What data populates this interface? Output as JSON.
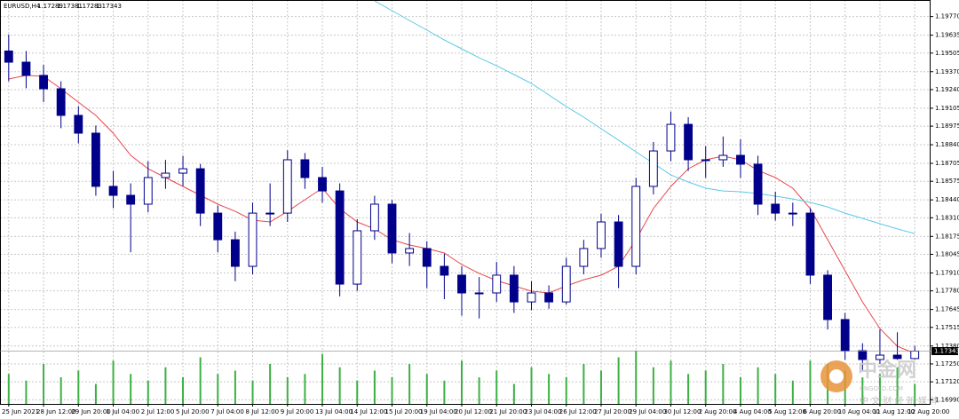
{
  "chart_data": {
    "type": "candlestick",
    "title": "EURUSD,H4",
    "categories": [
      "25 Jun 2021",
      null,
      "28 Jun 12:00",
      null,
      "29 Jun 20:00",
      null,
      "1 Jul 04:00",
      null,
      "2 Jul 12:00",
      null,
      "5 Jul 20:00",
      null,
      "7 Jul 04:00",
      null,
      "8 Jul 12:00",
      null,
      "9 Jul 20:00",
      null,
      "13 Jul 04:00",
      null,
      "14 Jul 12:00",
      null,
      "15 Jul 20:00",
      null,
      "19 Jul 04:00",
      null,
      "20 Jul 12:00",
      null,
      "21 Jul 20:00",
      null,
      "23 Jul 04:00",
      null,
      "26 Jul 12:00",
      null,
      "27 Jul 20:00",
      null,
      "29 Jul 04:00",
      null,
      "30 Jul 12:00",
      null,
      "2 Aug 20:00",
      null,
      "4 Aug 04:00",
      null,
      "5 Aug 12:00",
      null,
      "6 Aug 20:00",
      null,
      "10 Aug 04:00",
      null,
      "11 Aug 12:00",
      null,
      "12 Aug 20:00"
    ],
    "open": [
      1.1952,
      1.19439,
      1.19343,
      1.19246,
      1.19053,
      1.18924,
      1.18538,
      1.18473,
      1.18409,
      1.18602,
      1.18634,
      1.18666,
      1.18344,
      1.18151,
      1.17958,
      1.18344,
      1.18344,
      1.18731,
      1.18602,
      1.18505,
      1.17829,
      1.18216,
      1.18409,
      1.18055,
      1.18087,
      1.17958,
      1.17894,
      1.17765,
      1.17765,
      1.17894,
      1.177,
      1.17765,
      1.177,
      1.17958,
      1.18087,
      1.1828,
      1.17958,
      1.18538,
      1.18795,
      1.18988,
      1.18731,
      1.18731,
      1.18763,
      1.18699,
      1.18409,
      1.18344,
      1.18344,
      1.17894,
      1.17572,
      1.17346,
      1.17282,
      1.17314,
      1.17289
    ],
    "high": [
      1.1964,
      1.1952,
      1.1942,
      1.193,
      1.1912,
      1.1898,
      1.1865,
      1.1856,
      1.1872,
      1.1873,
      1.1876,
      1.187,
      1.184,
      1.1821,
      1.1842,
      1.1856,
      1.188,
      1.1878,
      1.1868,
      1.1856,
      1.183,
      1.1847,
      1.1844,
      1.182,
      1.1814,
      1.1805,
      1.1796,
      1.1788,
      1.1799,
      1.1796,
      1.1785,
      1.1782,
      1.1802,
      1.1815,
      1.1834,
      1.1833,
      1.186,
      1.1886,
      1.1908,
      1.1904,
      1.1883,
      1.189,
      1.1888,
      1.1876,
      1.185,
      1.1842,
      1.1838,
      1.1793,
      1.1762,
      1.174,
      1.175,
      1.1748,
      1.17381
    ],
    "low": [
      1.193,
      1.1925,
      1.1915,
      1.1896,
      1.1885,
      1.1847,
      1.1838,
      1.1806,
      1.1835,
      1.1852,
      1.1854,
      1.1825,
      1.1806,
      1.1785,
      1.179,
      1.1825,
      1.1828,
      1.1852,
      1.1842,
      1.1774,
      1.1778,
      1.1815,
      1.1798,
      1.1796,
      1.178,
      1.1772,
      1.176,
      1.1758,
      1.177,
      1.1762,
      1.1764,
      1.1765,
      1.1768,
      1.179,
      1.1802,
      1.178,
      1.179,
      1.1848,
      1.1872,
      1.1865,
      1.186,
      1.1868,
      1.186,
      1.1833,
      1.1829,
      1.1825,
      1.1783,
      1.175,
      1.1728,
      1.172,
      1.1725,
      1.1728,
      1.17283
    ],
    "close": [
      1.19439,
      1.19343,
      1.19246,
      1.19053,
      1.18924,
      1.18538,
      1.18473,
      1.18409,
      1.18602,
      1.18634,
      1.18666,
      1.18344,
      1.18151,
      1.17958,
      1.18344,
      1.18344,
      1.18731,
      1.18602,
      1.18505,
      1.17829,
      1.18216,
      1.18409,
      1.18055,
      1.18087,
      1.17958,
      1.17894,
      1.17765,
      1.17765,
      1.17894,
      1.177,
      1.17765,
      1.177,
      1.17958,
      1.18087,
      1.1828,
      1.17958,
      1.18538,
      1.18795,
      1.18988,
      1.18731,
      1.18731,
      1.18763,
      1.18699,
      1.18409,
      1.18344,
      1.18344,
      1.17894,
      1.17572,
      1.17346,
      1.17282,
      1.17314,
      1.17289,
      1.17343
    ],
    "volumes": [
      9000,
      7000,
      12000,
      8000,
      10000,
      6000,
      13000,
      9000,
      7000,
      11000,
      8000,
      14000,
      9000,
      10000,
      7000,
      12000,
      8000,
      9000,
      15000,
      11000,
      7000,
      10000,
      8000,
      12000,
      9000,
      7000,
      13000,
      8000,
      10000,
      6000,
      11000,
      9000,
      8000,
      12000,
      10000,
      14000,
      16000,
      11000,
      13000,
      9000,
      10000,
      12000,
      8000,
      11000,
      9000,
      7000,
      13000,
      12000,
      10000,
      8000,
      9000,
      11000,
      6000
    ],
    "volume_color": "#3cb043",
    "bull_fill": "#ffffff",
    "bear_fill": "#00008b",
    "candle_color": "#00008b",
    "lines": [
      {
        "color": "#e8474a",
        "values": [
          1.19317,
          1.19343,
          1.19336,
          1.19246,
          1.19149,
          1.19053,
          1.18924,
          1.18763,
          1.18666,
          1.18602,
          1.18538,
          1.18473,
          1.18409,
          1.18357,
          1.18293,
          1.1828,
          1.18357,
          1.18441,
          1.18525,
          1.18377,
          1.1828,
          1.18229,
          1.18151,
          1.18113,
          1.18087,
          1.18055,
          1.17971,
          1.17907,
          1.17855,
          1.17816,
          1.17778,
          1.17765,
          1.17816,
          1.17861,
          1.17894,
          1.17958,
          1.18151,
          1.18377,
          1.18538,
          1.18666,
          1.18731,
          1.18757,
          1.18731,
          1.18653,
          1.18602,
          1.18525,
          1.18377,
          1.18151,
          1.17926,
          1.177,
          1.17507,
          1.17378,
          1.17327
        ]
      },
      {
        "color": "#5bc8e8",
        "values": [
          null,
          null,
          null,
          null,
          null,
          null,
          null,
          null,
          null,
          null,
          null,
          null,
          null,
          null,
          null,
          null,
          null,
          null,
          null,
          null,
          null,
          1.19884,
          1.19813,
          1.19742,
          1.19671,
          1.196,
          1.19536,
          1.19471,
          1.19413,
          1.19349,
          1.19285,
          1.19201,
          1.19117,
          1.1904,
          1.18956,
          1.18873,
          1.18789,
          1.18705,
          1.18621,
          1.1857,
          1.18525,
          1.18505,
          1.18499,
          1.18486,
          1.18467,
          1.18447,
          1.18422,
          1.18389,
          1.18344,
          1.18306,
          1.18267,
          1.18229,
          1.18196
        ]
      }
    ],
    "ylim": [
      1.1696,
      1.1989
    ],
    "yticks": [
      {
        "value": 1.1977,
        "label": "1.19770"
      },
      1.19635,
      {
        "value": 1.19505,
        "label": "1.19505"
      },
      {
        "value": 1.1937,
        "label": "1.19370"
      },
      {
        "value": 1.1924,
        "label": "1.19240"
      },
      1.19105,
      1.18975,
      {
        "value": 1.1884,
        "label": "1.18840"
      },
      1.18705,
      1.18575,
      {
        "value": 1.1844,
        "label": "1.18440"
      },
      {
        "value": 1.1831,
        "label": "1.18310"
      },
      1.18175,
      1.18045,
      {
        "value": 1.1791,
        "label": "1.17910"
      },
      {
        "value": 1.1778,
        "label": "1.17780"
      },
      1.17645,
      1.17515,
      {
        "value": 1.1738,
        "label": "1.17380"
      },
      {
        "value": 1.1725,
        "label": "1.17250"
      },
      {
        "value": 1.1712,
        "label": "1.17120"
      },
      {
        "value": 1.1699,
        "label": "1.16990"
      }
    ],
    "grid": true
  },
  "watermark": {
    "brand": "中金网",
    "url": "CNGOLD.COM",
    "slogan": "中 文 财 经 新 媒 体"
  }
}
